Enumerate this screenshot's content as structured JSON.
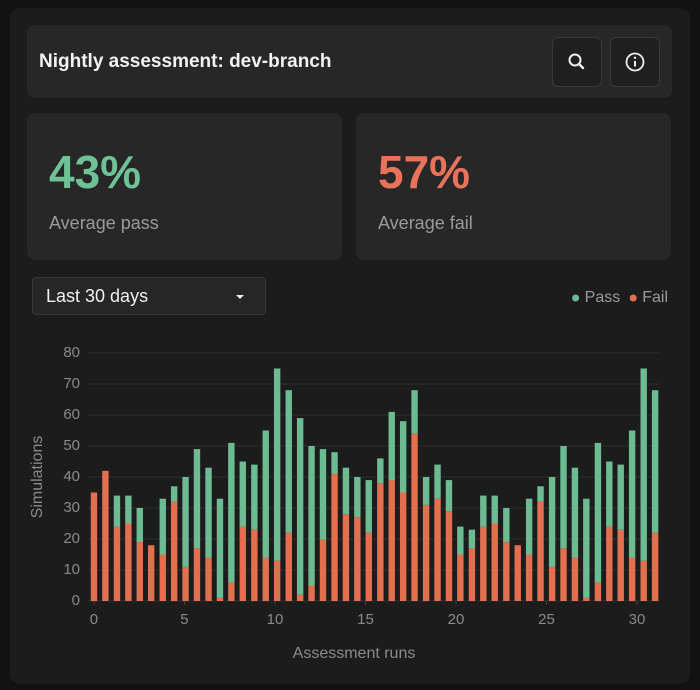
{
  "header": {
    "title": "Nightly assessment: dev-branch"
  },
  "stats": [
    {
      "value": "43%",
      "label": "Average pass"
    },
    {
      "value": "57%",
      "label": "Average fail"
    }
  ],
  "dropdown": {
    "selected": "Last 30 days"
  },
  "chart_data": {
    "type": "stacked_bar",
    "x_label": "Assessment runs",
    "y_label": "Simulations",
    "x": [
      0,
      0.63,
      1.27,
      1.9,
      2.53,
      3.16,
      3.8,
      4.43,
      5.06,
      5.69,
      6.33,
      6.96,
      7.59,
      8.22,
      8.86,
      9.49,
      10.12,
      10.76,
      11.39,
      12.02,
      12.65,
      13.29,
      13.92,
      14.55,
      15.18,
      15.82,
      16.45,
      17.08,
      17.71,
      18.35,
      18.98,
      19.61,
      20.24,
      20.88,
      21.51,
      22.14,
      22.78,
      23.41,
      24.04,
      24.67,
      25.31,
      25.94,
      26.57,
      27.2,
      27.84,
      28.47,
      29.1,
      29.73,
      30.37,
      31
    ],
    "series": [
      {
        "name": "Fail",
        "color": "#e2704f",
        "values": [
          35,
          42,
          24,
          25,
          19,
          18,
          15,
          32,
          11,
          17,
          14,
          1,
          6,
          24,
          23,
          14,
          13,
          22,
          2,
          5,
          20,
          41,
          28,
          27,
          22,
          38,
          39,
          35,
          54,
          31,
          33,
          29,
          15,
          17,
          24,
          25,
          19,
          18,
          15,
          32,
          11,
          17,
          14,
          1,
          6,
          24,
          23,
          14,
          13,
          22
        ]
      },
      {
        "name": "Pass",
        "color": "#6dbb92",
        "values": [
          0,
          0,
          10,
          9,
          11,
          0,
          18,
          5,
          29,
          32,
          29,
          32,
          45,
          21,
          21,
          41,
          62,
          46,
          57,
          45,
          29,
          7,
          15,
          13,
          17,
          8,
          22,
          23,
          14,
          9,
          11,
          10,
          9,
          6,
          10,
          9,
          11,
          0,
          18,
          5,
          29,
          33,
          29,
          32,
          45,
          21,
          21,
          41,
          62,
          46
        ]
      }
    ],
    "legend_order": [
      1,
      0
    ],
    "xlim": [
      -0.33,
      31.27
    ],
    "xticks": [
      0,
      5,
      10,
      15,
      20,
      25,
      30
    ],
    "ylim": [
      0,
      80
    ],
    "yticks": [
      0,
      10,
      20,
      30,
      40,
      50,
      60,
      70,
      80
    ],
    "grid": true,
    "legend": "upper right"
  }
}
